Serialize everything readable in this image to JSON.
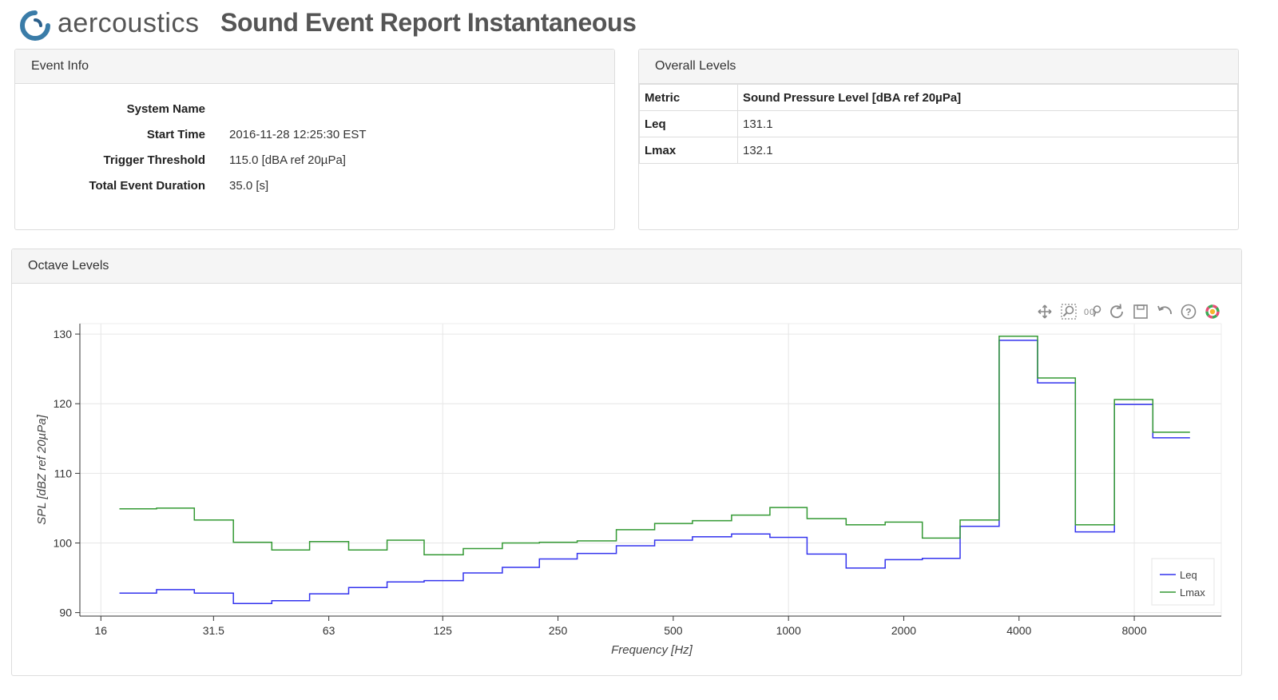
{
  "header": {
    "brand": "aercoustics",
    "title": "Sound Event Report Instantaneous",
    "logo_color": "#2b5f8a"
  },
  "event_info": {
    "heading": "Event Info",
    "rows": [
      {
        "label": "System Name",
        "value": ""
      },
      {
        "label": "Start Time",
        "value": "2016-11-28 12:25:30 EST"
      },
      {
        "label": "Trigger Threshold",
        "value": "115.0 [dBA ref 20µPa]"
      },
      {
        "label": "Total Event Duration",
        "value": "35.0 [s]"
      }
    ]
  },
  "overall_levels": {
    "heading": "Overall Levels",
    "columns": [
      "Metric",
      "Sound Pressure Level [dBA ref 20µPa]"
    ],
    "rows": [
      {
        "metric": "Leq",
        "value": "131.1"
      },
      {
        "metric": "Lmax",
        "value": "132.1"
      }
    ]
  },
  "octave": {
    "heading": "Octave Levels",
    "toolbar": [
      "pan-icon",
      "box-zoom-icon",
      "wheel-zoom-icon",
      "reset-icon",
      "save-icon",
      "undo-icon",
      "help-icon",
      "bokeh-logo-icon"
    ]
  },
  "chart_data": {
    "type": "line",
    "step": true,
    "xlabel": "Frequency [Hz]",
    "ylabel": "SPL [dBZ ref 20µPa]",
    "x_scale": "log2",
    "xlim": [
      14.1,
      13500
    ],
    "ylim": [
      89.5,
      131.5
    ],
    "x_ticks": [
      {
        "value": 16,
        "label": "16"
      },
      {
        "value": 31.5,
        "label": "31.5"
      },
      {
        "value": 63,
        "label": "63"
      },
      {
        "value": 125,
        "label": "125"
      },
      {
        "value": 250,
        "label": "250"
      },
      {
        "value": 500,
        "label": "500"
      },
      {
        "value": 1000,
        "label": "1000"
      },
      {
        "value": 2000,
        "label": "2000"
      },
      {
        "value": 4000,
        "label": "4000"
      },
      {
        "value": 8000,
        "label": "8000"
      }
    ],
    "y_ticks": [
      90,
      100,
      110,
      120,
      130
    ],
    "x_grid": [
      16,
      125,
      1000,
      8000
    ],
    "x": [
      20,
      25,
      31.5,
      40,
      50,
      63,
      80,
      100,
      125,
      160,
      200,
      250,
      315,
      400,
      500,
      630,
      800,
      1000,
      1250,
      1600,
      2000,
      2500,
      3150,
      4000,
      5000,
      6300,
      8000,
      10000
    ],
    "series": [
      {
        "name": "Leq",
        "color": "#3333ee",
        "values": [
          92.8,
          93.3,
          92.8,
          91.3,
          91.7,
          92.7,
          93.6,
          94.4,
          94.6,
          95.7,
          96.5,
          97.7,
          98.5,
          99.6,
          100.4,
          100.9,
          101.3,
          100.8,
          98.4,
          96.4,
          97.6,
          97.8,
          102.4,
          129.1,
          123.0,
          101.6,
          119.9,
          115.1
        ]
      },
      {
        "name": "Lmax",
        "color": "#339933",
        "values": [
          104.9,
          105.0,
          103.3,
          100.1,
          99.0,
          100.2,
          99.0,
          100.4,
          98.3,
          99.2,
          100.0,
          100.1,
          100.3,
          101.9,
          102.8,
          103.2,
          104.0,
          105.1,
          103.5,
          102.6,
          103.0,
          100.7,
          103.3,
          129.7,
          123.7,
          102.6,
          120.6,
          115.9
        ]
      }
    ],
    "legend": "bottom-right",
    "grid": true
  }
}
